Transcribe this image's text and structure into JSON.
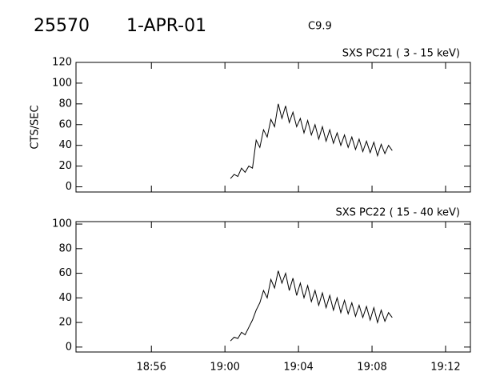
{
  "header": {
    "id": "25570",
    "date": "1-APR-01",
    "class": "C9.9"
  },
  "chart_data": [
    {
      "type": "line",
      "title": "SXS PC21  (  3 - 15 keV)",
      "y_label": "CTS/SEC",
      "x": [
        1140.3,
        1140.5,
        1140.7,
        1140.9,
        1141.1,
        1141.3,
        1141.5,
        1141.7,
        1141.9,
        1142.1,
        1142.3,
        1142.5,
        1142.7,
        1142.9,
        1143.1,
        1143.3,
        1143.5,
        1143.7,
        1143.9,
        1144.1,
        1144.3,
        1144.5,
        1144.7,
        1144.9,
        1145.1,
        1145.3,
        1145.5,
        1145.7,
        1145.9,
        1146.1,
        1146.3,
        1146.5,
        1146.7,
        1146.9,
        1147.1,
        1147.3,
        1147.5,
        1147.7,
        1147.9,
        1148.1,
        1148.3,
        1148.5,
        1148.7,
        1148.9,
        1149.1
      ],
      "series": [
        {
          "color": "#000000",
          "values": [
            8,
            12,
            10,
            18,
            14,
            20,
            18,
            45,
            38,
            55,
            48,
            65,
            58,
            80,
            66,
            78,
            62,
            72,
            58,
            66,
            52,
            64,
            50,
            60,
            46,
            58,
            44,
            55,
            42,
            52,
            40,
            50,
            38,
            48,
            36,
            46,
            34,
            44,
            33,
            43,
            30,
            41,
            32,
            40,
            35
          ]
        }
      ],
      "xlim": [
        1131.9,
        1153.35
      ],
      "ylim": [
        -5,
        120
      ],
      "yticks": [
        0,
        20,
        40,
        60,
        80,
        100,
        120
      ]
    },
    {
      "type": "line",
      "title": "SXS PC22  ( 15 - 40 keV)",
      "x": [
        1140.3,
        1140.5,
        1140.7,
        1140.9,
        1141.1,
        1141.3,
        1141.5,
        1141.7,
        1141.9,
        1142.1,
        1142.3,
        1142.5,
        1142.7,
        1142.9,
        1143.1,
        1143.3,
        1143.5,
        1143.7,
        1143.9,
        1144.1,
        1144.3,
        1144.5,
        1144.7,
        1144.9,
        1145.1,
        1145.3,
        1145.5,
        1145.7,
        1145.9,
        1146.1,
        1146.3,
        1146.5,
        1146.7,
        1146.9,
        1147.1,
        1147.3,
        1147.5,
        1147.7,
        1147.9,
        1148.1,
        1148.3,
        1148.5,
        1148.7,
        1148.9,
        1149.1
      ],
      "series": [
        {
          "color": "#000000",
          "values": [
            5,
            8,
            7,
            12,
            10,
            16,
            22,
            30,
            36,
            46,
            40,
            55,
            48,
            62,
            52,
            60,
            46,
            56,
            42,
            52,
            40,
            50,
            37,
            46,
            34,
            44,
            32,
            42,
            30,
            40,
            28,
            38,
            27,
            36,
            25,
            34,
            24,
            33,
            22,
            32,
            20,
            30,
            21,
            28,
            24
          ]
        }
      ],
      "xlim": [
        1131.9,
        1153.35
      ],
      "ylim": [
        -4,
        102
      ],
      "yticks": [
        0,
        20,
        40,
        60,
        80,
        100
      ],
      "xticks": [
        {
          "value": 1136,
          "label": "18:56"
        },
        {
          "value": 1140,
          "label": "19:00"
        },
        {
          "value": 1144,
          "label": "19:04"
        },
        {
          "value": 1148,
          "label": "19:08"
        },
        {
          "value": 1152,
          "label": "19:12"
        }
      ]
    }
  ]
}
